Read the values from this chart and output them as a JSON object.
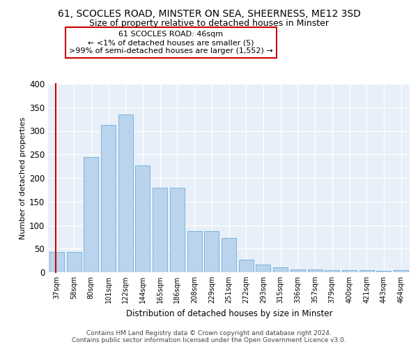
{
  "title": "61, SCOCLES ROAD, MINSTER ON SEA, SHEERNESS, ME12 3SD",
  "subtitle": "Size of property relative to detached houses in Minster",
  "xlabel": "Distribution of detached houses by size in Minster",
  "ylabel": "Number of detached properties",
  "categories": [
    "37sqm",
    "58sqm",
    "80sqm",
    "101sqm",
    "122sqm",
    "144sqm",
    "165sqm",
    "186sqm",
    "208sqm",
    "229sqm",
    "251sqm",
    "272sqm",
    "293sqm",
    "315sqm",
    "336sqm",
    "357sqm",
    "379sqm",
    "400sqm",
    "421sqm",
    "443sqm",
    "464sqm"
  ],
  "bar_values": [
    43,
    43,
    245,
    312,
    335,
    226,
    180,
    180,
    88,
    88,
    73,
    27,
    16,
    10,
    6,
    6,
    5,
    4,
    4,
    3,
    4
  ],
  "bar_color": "#bad4ee",
  "bar_edge_color": "#6baed6",
  "annotation_line1": "61 SCOCLES ROAD: 46sqm",
  "annotation_line2": "← <1% of detached houses are smaller (5)",
  "annotation_line3": ">99% of semi-detached houses are larger (1,552) →",
  "ylim": [
    0,
    400
  ],
  "yticks": [
    0,
    50,
    100,
    150,
    200,
    250,
    300,
    350,
    400
  ],
  "footer_text": "Contains HM Land Registry data © Crown copyright and database right 2024.\nContains public sector information licensed under the Open Government Licence v3.0.",
  "bg_color": "#e8eff9",
  "fig_bg_color": "#ffffff",
  "title_fontsize": 10,
  "subtitle_fontsize": 9,
  "ylabel_fontsize": 8,
  "xlabel_fontsize": 8.5,
  "tick_fontsize": 7,
  "footer_fontsize": 6.5,
  "ann_fontsize": 8,
  "red_color": "#cc0000"
}
